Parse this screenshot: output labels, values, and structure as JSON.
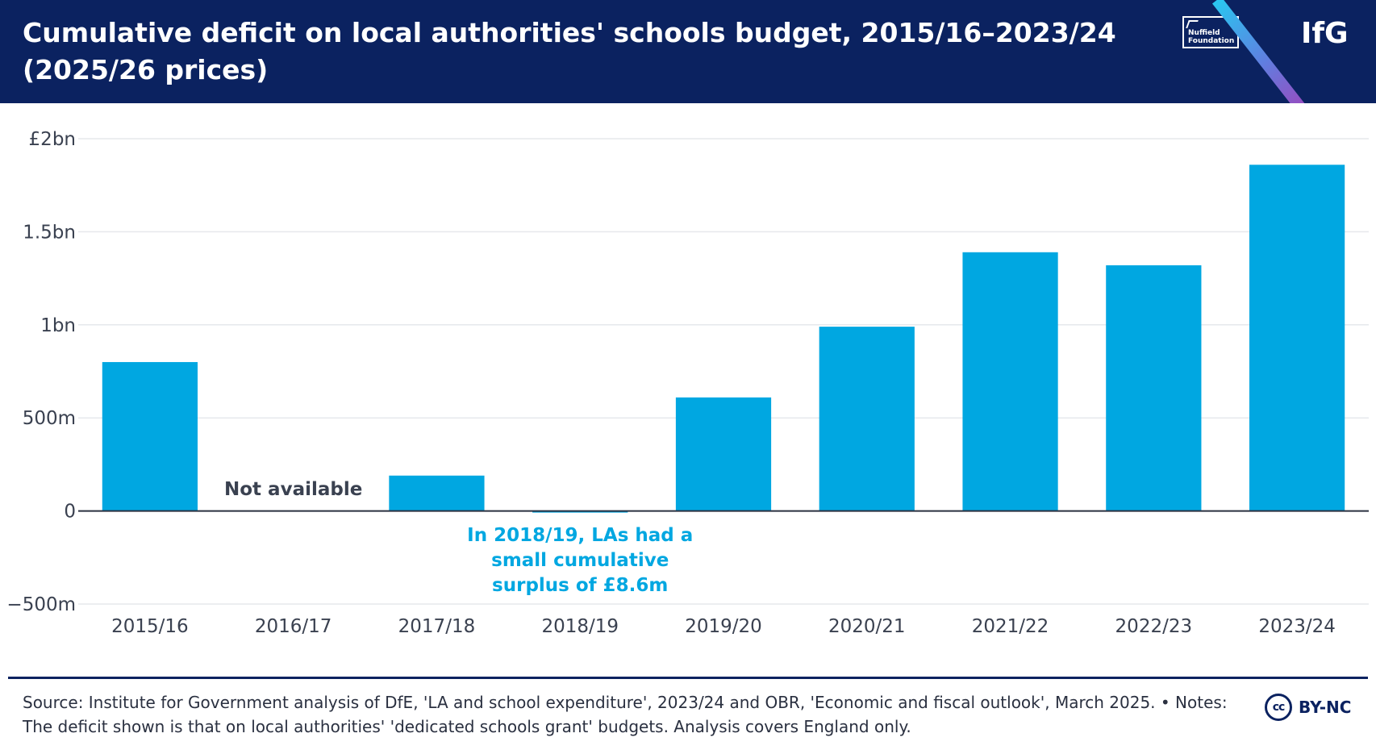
{
  "header": {
    "title": "Cumulative deficit on local authorities' schools budget, 2015/16–2023/24 (2025/26 prices)",
    "partner_logo_text": "Nuffield Foundation",
    "brand_logo_text": "IfG",
    "background_color": "#0b2260"
  },
  "chart_data": {
    "type": "bar",
    "title": "Cumulative deficit on local authorities' schools budget, 2015/16–2023/24 (2025/26 prices)",
    "xlabel": "",
    "ylabel": "",
    "categories": [
      "2015/16",
      "2016/17",
      "2017/18",
      "2018/19",
      "2019/20",
      "2020/21",
      "2021/22",
      "2022/23",
      "2023/24"
    ],
    "values": [
      800,
      null,
      190,
      -8.6,
      610,
      990,
      1390,
      1320,
      1860
    ],
    "units": "£ millions",
    "ylim": [
      -500,
      2000
    ],
    "yticks": [
      -500,
      0,
      500,
      1000,
      1500,
      2000
    ],
    "ytick_labels": [
      "−500m",
      "0",
      "500m",
      "1bn",
      "1.5bn",
      "£2bn"
    ],
    "grid": true,
    "bar_color": "#00a7e1",
    "annotations": [
      {
        "category": "2016/17",
        "text": "Not available",
        "color": "#3a4150"
      },
      {
        "category": "2018/19",
        "text": "In 2018/19, LAs had a small cumulative surplus of £8.6m",
        "color": "#00a7e1"
      }
    ]
  },
  "footer": {
    "source": "Source: Institute for Government analysis of DfE, 'LA and school expenditure', 2023/24 and OBR, 'Economic and fiscal outlook', March 2025. • Notes: The deficit shown is that on local authorities' 'dedicated schools grant' budgets. Analysis covers England only.",
    "license_icon_text": "cc",
    "license_label": "BY-NC"
  }
}
